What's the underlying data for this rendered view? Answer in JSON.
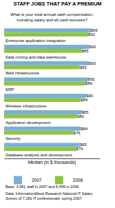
{
  "chart_data": {
    "type": "bar",
    "orientation": "horizontal",
    "title": "STAFF JOBS THAT PAY A PREMIUM",
    "subtitle": "What is your total annual cash compensation,\nincluding salary and all cash bonuses?",
    "xlabel": "Median (in $ thousands)",
    "categories": [
      "Enterprise application integration",
      "Data mining and data warehouse",
      "Web infrastructure",
      "ERP",
      "Wireless infrastructure",
      "Application development",
      "Security",
      "Database analysis and development"
    ],
    "series": [
      {
        "name": "2007",
        "color": "#7bafd4",
        "values": [
          95,
          93,
          93,
          92,
          90,
          85,
          84,
          83
        ],
        "value_labels": [
          "$95",
          "$93",
          "$93",
          "$92",
          "$90",
          "$85",
          "$84",
          "$83"
        ]
      },
      {
        "name": "2006",
        "color": "#8dc63f",
        "values": [
          92,
          85,
          83,
          89,
          84,
          80,
          76,
          79
        ],
        "value_labels": [
          "$92",
          "$85",
          "$83",
          "$89",
          "$84",
          "$80",
          "$76",
          "$79"
        ]
      }
    ],
    "xlim": [
      0,
      105
    ],
    "tick_labels": false,
    "grid": false,
    "legend": "bottom",
    "data_labels": true,
    "annotations": [
      "Base: 3,561 staff in 2007 and 5,456 in 2006",
      "Data: InformationWeek Research National IT Salary\nSurvey of 7,281 IT professionals, spring 2007"
    ]
  }
}
